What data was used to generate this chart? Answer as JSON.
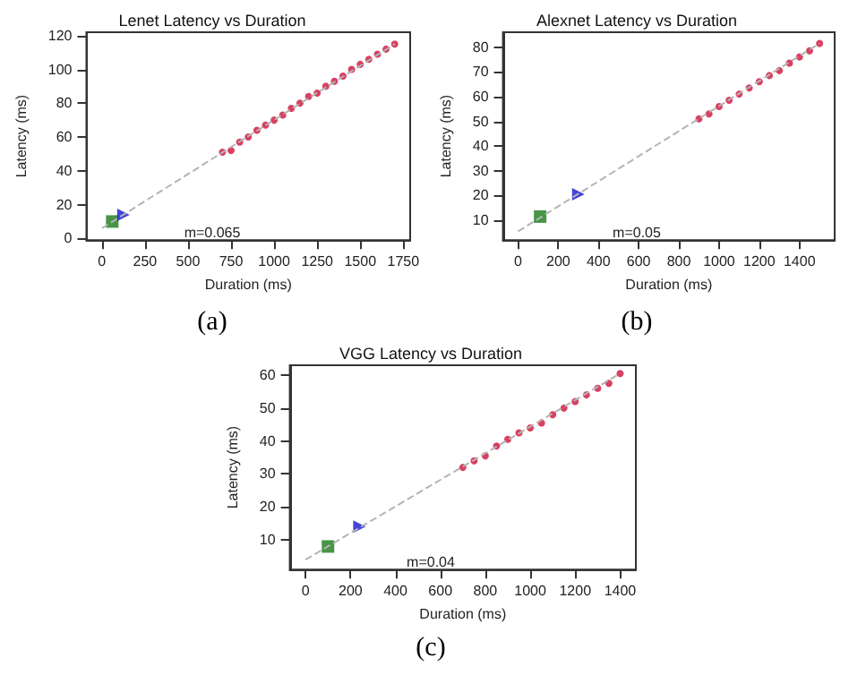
{
  "chart_data": [
    {
      "type": "scatter",
      "title": "Lenet Latency vs Duration",
      "xlabel": "Duration (ms)",
      "ylabel": "Latency (ms)",
      "annotations": [
        "m=0.065",
        "(a)"
      ],
      "xlim": [
        -90,
        1790
      ],
      "ylim": [
        -1,
        122
      ],
      "xticks": [
        0,
        250,
        500,
        750,
        1000,
        1250,
        1500,
        1750
      ],
      "yticks": [
        0,
        20,
        40,
        60,
        80,
        100,
        120
      ],
      "series": [
        {
          "type": "line",
          "color": "#b4b4b4",
          "marker": "none",
          "line_style": "dashed",
          "x": [
            0,
            1700
          ],
          "values": [
            6,
            115
          ]
        },
        {
          "color": "#d0103a",
          "marker": "circle",
          "x": [
            700,
            750,
            800,
            850,
            900,
            950,
            1000,
            1050,
            1100,
            1150,
            1200,
            1250,
            1300,
            1350,
            1400,
            1450,
            1500,
            1550,
            1600,
            1650,
            1700
          ],
          "values": [
            51,
            52,
            57,
            60,
            64,
            67,
            70,
            73,
            77,
            80,
            84,
            86,
            90,
            93,
            96,
            100,
            103,
            106,
            109,
            112,
            115
          ]
        },
        {
          "color": "#1a7a1a",
          "marker": "square",
          "x": [
            60
          ],
          "values": [
            10
          ]
        },
        {
          "color": "#1515d0",
          "marker": "triangle",
          "x": [
            125
          ],
          "values": [
            14
          ]
        }
      ]
    },
    {
      "type": "scatter",
      "title": "Alexnet Latency vs Duration",
      "xlabel": "Duration (ms)",
      "ylabel": "Latency (ms)",
      "annotations": [
        "m=0.05",
        "(b)"
      ],
      "xlim": [
        -75,
        1575
      ],
      "ylim": [
        2,
        86
      ],
      "xticks": [
        0,
        200,
        400,
        600,
        800,
        1000,
        1200,
        1400
      ],
      "yticks": [
        10,
        20,
        30,
        40,
        50,
        60,
        70,
        80
      ],
      "series": [
        {
          "type": "line",
          "color": "#b4b4b4",
          "marker": "none",
          "line_style": "dashed",
          "x": [
            0,
            1500
          ],
          "values": [
            5.5,
            81.5
          ]
        },
        {
          "color": "#d0103a",
          "marker": "circle",
          "x": [
            900,
            950,
            1000,
            1050,
            1100,
            1150,
            1200,
            1250,
            1300,
            1350,
            1400,
            1450,
            1500
          ],
          "values": [
            51,
            53,
            56,
            58.5,
            61,
            63.5,
            66,
            68.5,
            70.5,
            73.5,
            76,
            78.5,
            81.5
          ]
        },
        {
          "color": "#1a7a1a",
          "marker": "square",
          "x": [
            110
          ],
          "values": [
            11.5
          ]
        },
        {
          "color": "#1515d0",
          "marker": "triangle",
          "x": [
            300
          ],
          "values": [
            20.5
          ]
        }
      ]
    },
    {
      "type": "scatter",
      "title": "VGG Latency vs Duration",
      "xlabel": "Duration (ms)",
      "ylabel": "Latency (ms)",
      "annotations": [
        "m=0.04",
        "(c)"
      ],
      "xlim": [
        -70,
        1470
      ],
      "ylim": [
        1,
        63
      ],
      "xticks": [
        0,
        200,
        400,
        600,
        800,
        1000,
        1200,
        1400
      ],
      "yticks": [
        10,
        20,
        30,
        40,
        50,
        60
      ],
      "series": [
        {
          "type": "line",
          "color": "#b4b4b4",
          "marker": "none",
          "line_style": "dashed",
          "x": [
            0,
            1400
          ],
          "values": [
            4,
            60.5
          ]
        },
        {
          "color": "#d0103a",
          "marker": "circle",
          "x": [
            700,
            750,
            800,
            850,
            900,
            950,
            1000,
            1050,
            1100,
            1150,
            1200,
            1250,
            1300,
            1350,
            1400
          ],
          "values": [
            32,
            34,
            35.5,
            38.5,
            40.5,
            42.5,
            44,
            45.5,
            48,
            50,
            52,
            54,
            56,
            57.5,
            60.5
          ]
        },
        {
          "color": "#1a7a1a",
          "marker": "square",
          "x": [
            100
          ],
          "values": [
            8
          ]
        },
        {
          "color": "#1515d0",
          "marker": "triangle",
          "x": [
            240
          ],
          "values": [
            14
          ]
        }
      ]
    }
  ]
}
